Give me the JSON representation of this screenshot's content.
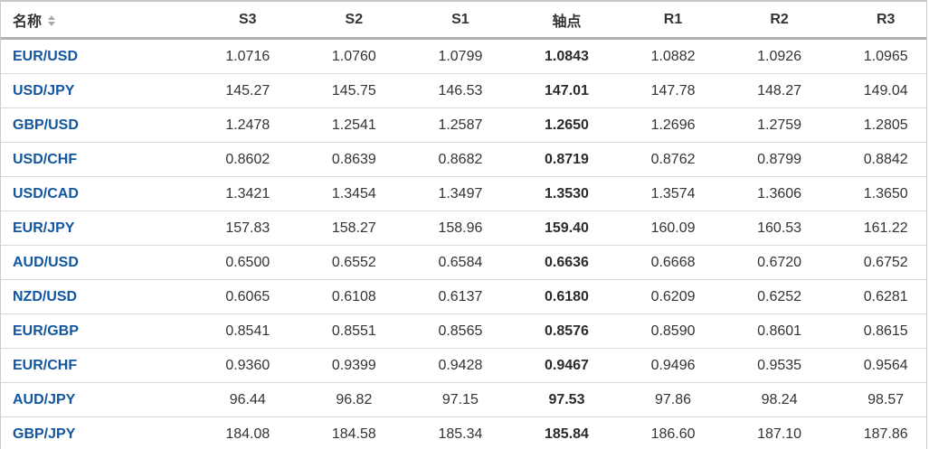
{
  "table": {
    "header": {
      "name_label": "名称",
      "sort_icon": "sort-arrows-icon",
      "columns": [
        "S3",
        "S2",
        "S1",
        "轴点",
        "R1",
        "R2",
        "R3"
      ]
    },
    "rows": [
      {
        "pair": "EUR/USD",
        "values": [
          "1.0716",
          "1.0760",
          "1.0799",
          "1.0843",
          "1.0882",
          "1.0926",
          "1.0965"
        ]
      },
      {
        "pair": "USD/JPY",
        "values": [
          "145.27",
          "145.75",
          "146.53",
          "147.01",
          "147.78",
          "148.27",
          "149.04"
        ]
      },
      {
        "pair": "GBP/USD",
        "values": [
          "1.2478",
          "1.2541",
          "1.2587",
          "1.2650",
          "1.2696",
          "1.2759",
          "1.2805"
        ]
      },
      {
        "pair": "USD/CHF",
        "values": [
          "0.8602",
          "0.8639",
          "0.8682",
          "0.8719",
          "0.8762",
          "0.8799",
          "0.8842"
        ]
      },
      {
        "pair": "USD/CAD",
        "values": [
          "1.3421",
          "1.3454",
          "1.3497",
          "1.3530",
          "1.3574",
          "1.3606",
          "1.3650"
        ]
      },
      {
        "pair": "EUR/JPY",
        "values": [
          "157.83",
          "158.27",
          "158.96",
          "159.40",
          "160.09",
          "160.53",
          "161.22"
        ]
      },
      {
        "pair": "AUD/USD",
        "values": [
          "0.6500",
          "0.6552",
          "0.6584",
          "0.6636",
          "0.6668",
          "0.6720",
          "0.6752"
        ]
      },
      {
        "pair": "NZD/USD",
        "values": [
          "0.6065",
          "0.6108",
          "0.6137",
          "0.6180",
          "0.6209",
          "0.6252",
          "0.6281"
        ]
      },
      {
        "pair": "EUR/GBP",
        "values": [
          "0.8541",
          "0.8551",
          "0.8565",
          "0.8576",
          "0.8590",
          "0.8601",
          "0.8615"
        ]
      },
      {
        "pair": "EUR/CHF",
        "values": [
          "0.9360",
          "0.9399",
          "0.9428",
          "0.9467",
          "0.9496",
          "0.9535",
          "0.9564"
        ]
      },
      {
        "pair": "AUD/JPY",
        "values": [
          "96.44",
          "96.82",
          "97.15",
          "97.53",
          "97.86",
          "98.24",
          "98.57"
        ]
      },
      {
        "pair": "GBP/JPY",
        "values": [
          "184.08",
          "184.58",
          "185.34",
          "185.84",
          "186.60",
          "187.10",
          "187.86"
        ]
      }
    ],
    "colors": {
      "link_blue": "#1256a0",
      "text": "#333333",
      "row_border": "#d9d9d9",
      "header_border": "#b0b0b0",
      "outer_border": "#cbcbcb",
      "sort_caret": "#a9a9a9"
    }
  }
}
